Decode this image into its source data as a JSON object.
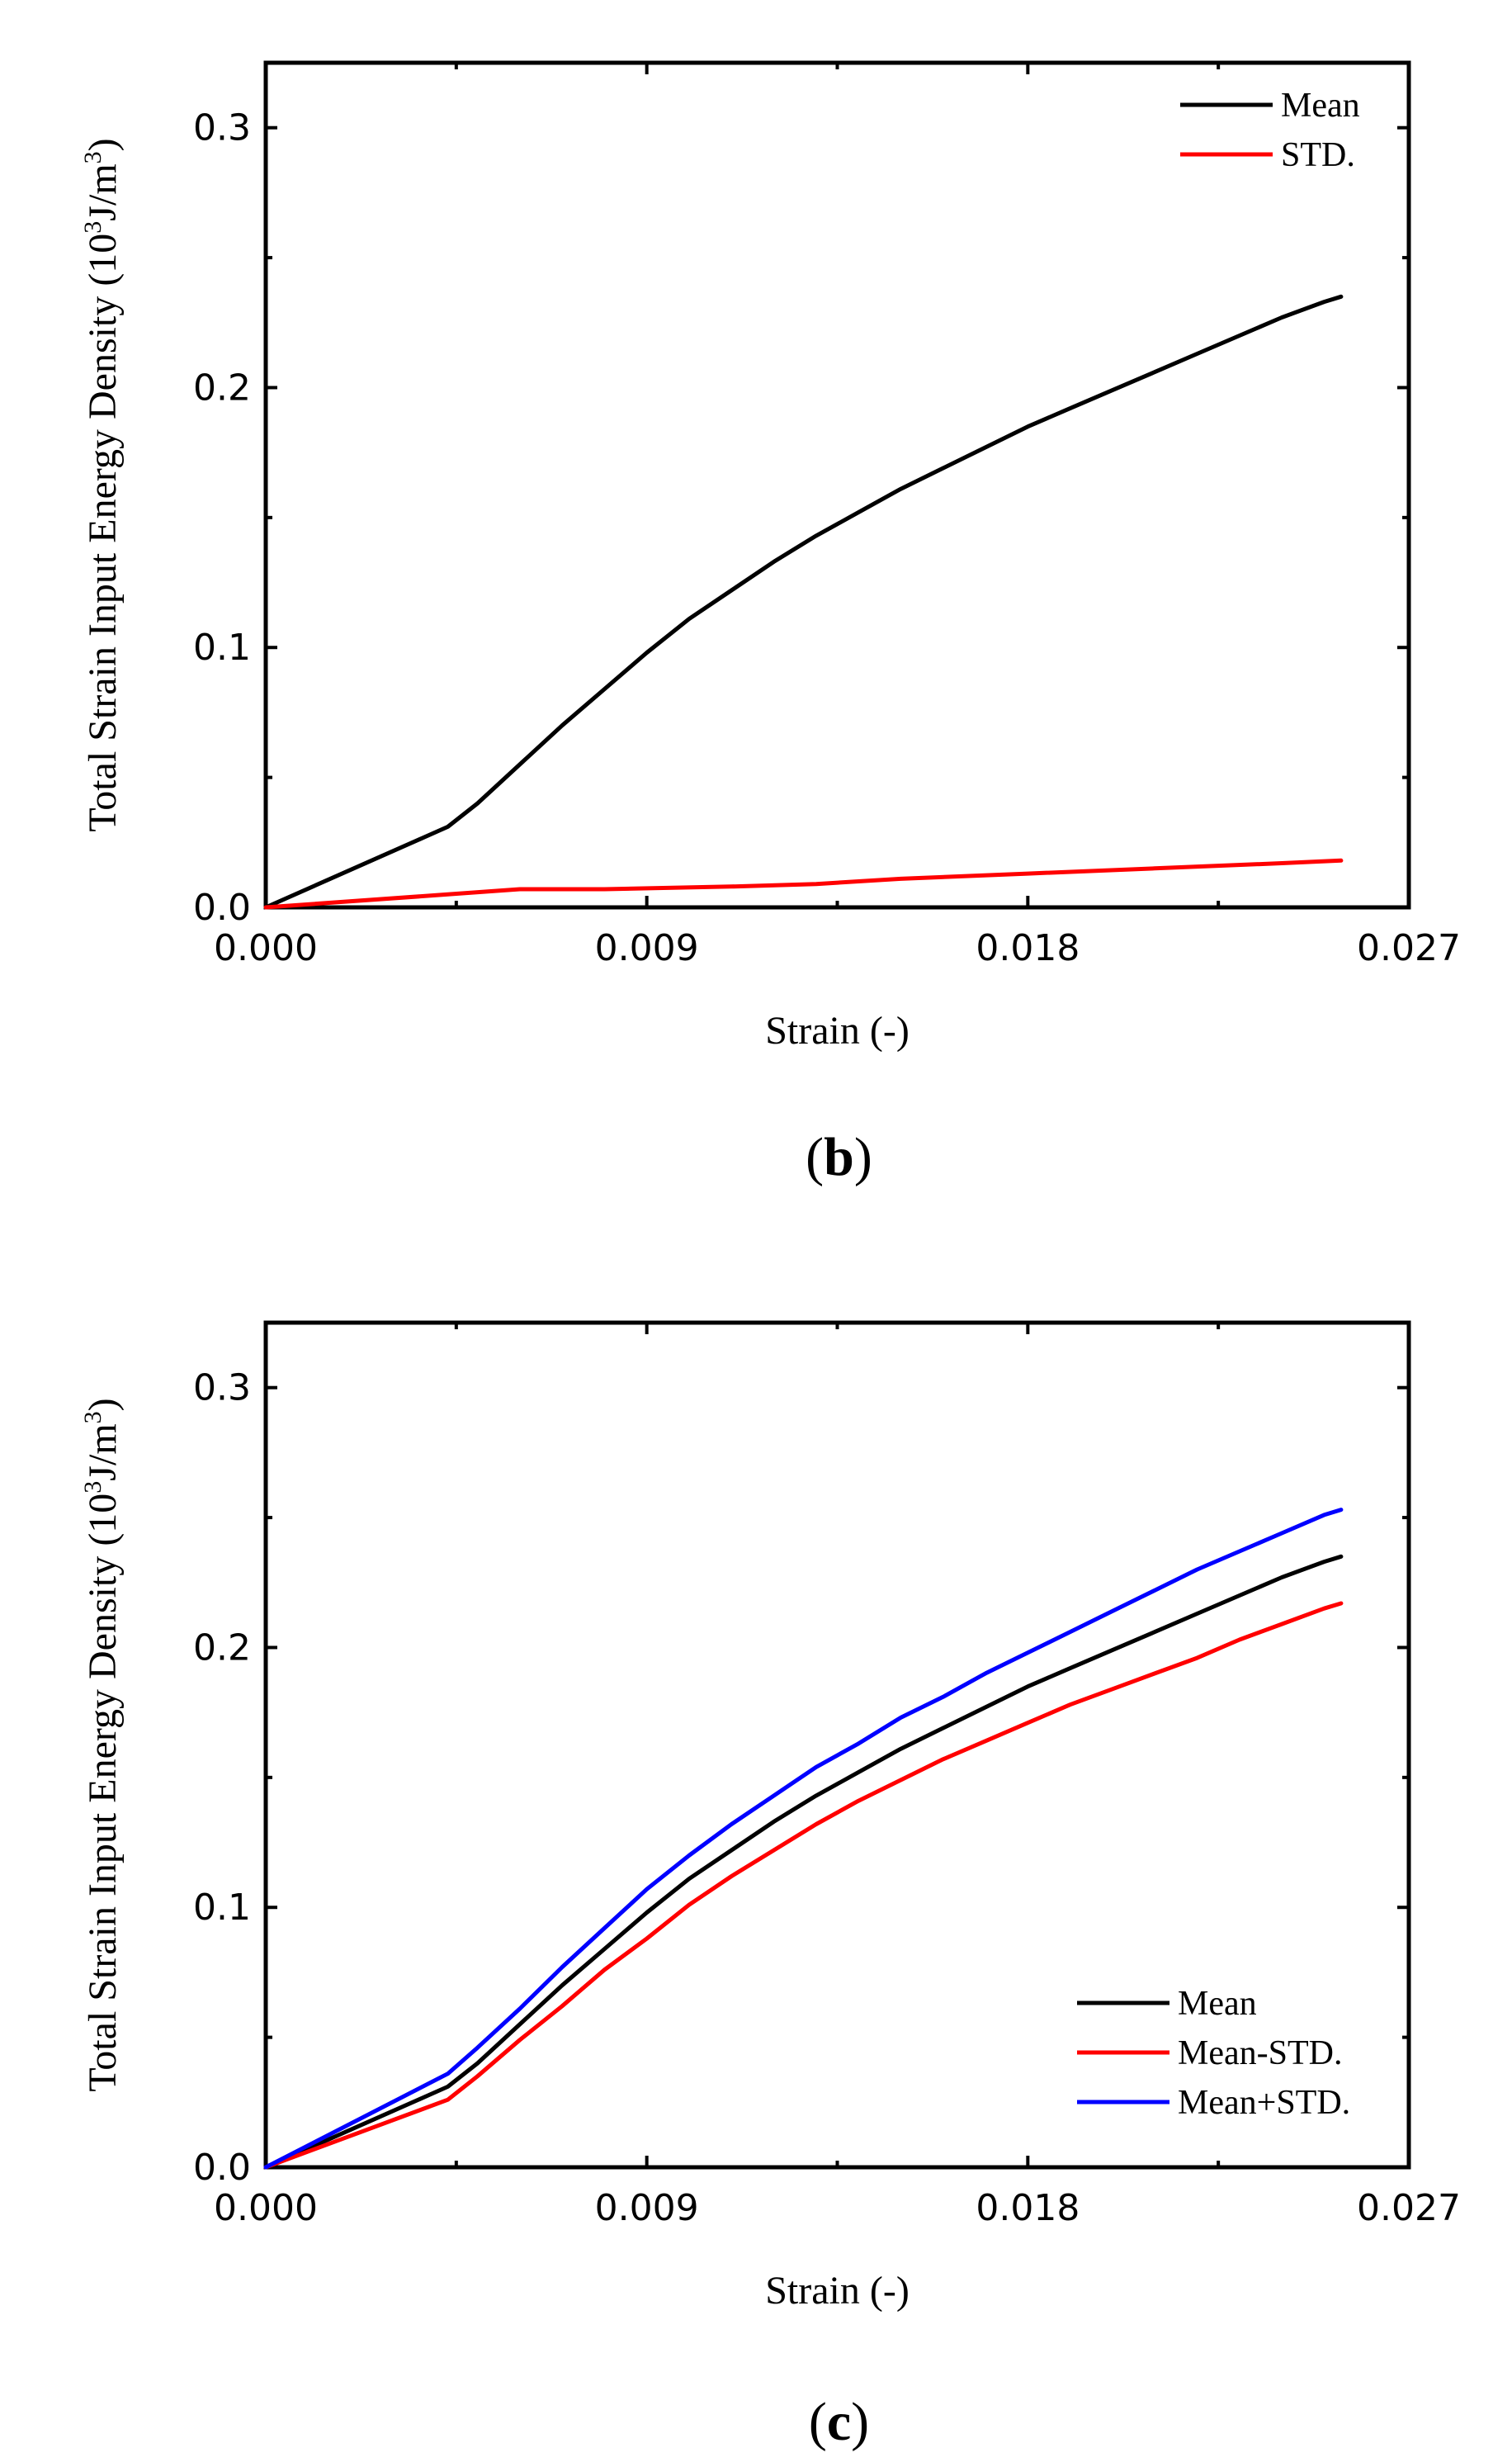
{
  "chart_data": [
    {
      "id": "b",
      "type": "line",
      "caption": {
        "open": "(",
        "letter": "b",
        "close": ")"
      },
      "xlabel": "Strain (-)",
      "ylabel": {
        "main": "Total Strain Input Energy Density (10",
        "sup1": "3",
        "mid": "J/m",
        "sup2": "3",
        "end": ")"
      },
      "xlim": [
        0,
        0.027
      ],
      "ylim": [
        0,
        0.325
      ],
      "xticks": [
        0,
        0.009,
        0.018,
        0.027
      ],
      "xtick_labels": [
        "0.000",
        "0.009",
        "0.018",
        "0.027"
      ],
      "yticks": [
        0,
        0.1,
        0.2,
        0.3
      ],
      "ytick_labels": [
        "0.0",
        "0.1",
        "0.2",
        "0.3"
      ],
      "legend_position": "top-right",
      "series": [
        {
          "name": "Mean",
          "color": "#000000",
          "x": [
            0,
            0.0043,
            0.005,
            0.006,
            0.007,
            0.008,
            0.009,
            0.01,
            0.011,
            0.012,
            0.013,
            0.014,
            0.015,
            0.016,
            0.017,
            0.018,
            0.019,
            0.02,
            0.021,
            0.022,
            0.023,
            0.024,
            0.025,
            0.0254
          ],
          "y": [
            0,
            0.031,
            0.04,
            0.055,
            0.07,
            0.084,
            0.098,
            0.111,
            0.122,
            0.133,
            0.143,
            0.152,
            0.161,
            0.169,
            0.177,
            0.185,
            0.192,
            0.199,
            0.206,
            0.213,
            0.22,
            0.227,
            0.233,
            0.235
          ]
        },
        {
          "name": "STD.",
          "color": "#ff0000",
          "x": [
            0,
            0.0043,
            0.006,
            0.008,
            0.011,
            0.013,
            0.015,
            0.018,
            0.021,
            0.024,
            0.0254
          ],
          "y": [
            0,
            0.005,
            0.007,
            0.007,
            0.008,
            0.009,
            0.011,
            0.013,
            0.015,
            0.017,
            0.018
          ]
        }
      ]
    },
    {
      "id": "c",
      "type": "line",
      "caption": {
        "open": "(",
        "letter": "c",
        "close": ")"
      },
      "xlabel": "Strain (-)",
      "ylabel": {
        "main": "Total Strain Input Energy Density (10",
        "sup1": "3",
        "mid": "J/m",
        "sup2": "3",
        "end": ")"
      },
      "xlim": [
        0,
        0.027
      ],
      "ylim": [
        0,
        0.325
      ],
      "xticks": [
        0,
        0.009,
        0.018,
        0.027
      ],
      "xtick_labels": [
        "0.000",
        "0.009",
        "0.018",
        "0.027"
      ],
      "yticks": [
        0,
        0.1,
        0.2,
        0.3
      ],
      "ytick_labels": [
        "0.0",
        "0.1",
        "0.2",
        "0.3"
      ],
      "legend_position": "bottom-right",
      "series": [
        {
          "name": "Mean",
          "color": "#000000",
          "x": [
            0,
            0.0043,
            0.005,
            0.006,
            0.007,
            0.008,
            0.009,
            0.01,
            0.011,
            0.012,
            0.013,
            0.014,
            0.015,
            0.016,
            0.017,
            0.018,
            0.019,
            0.02,
            0.021,
            0.022,
            0.023,
            0.024,
            0.025,
            0.0254
          ],
          "y": [
            0,
            0.031,
            0.04,
            0.055,
            0.07,
            0.084,
            0.098,
            0.111,
            0.122,
            0.133,
            0.143,
            0.152,
            0.161,
            0.169,
            0.177,
            0.185,
            0.192,
            0.199,
            0.206,
            0.213,
            0.22,
            0.227,
            0.233,
            0.235
          ]
        },
        {
          "name": "Mean-STD.",
          "color": "#ff0000",
          "x": [
            0,
            0.0043,
            0.005,
            0.006,
            0.007,
            0.008,
            0.009,
            0.01,
            0.011,
            0.012,
            0.013,
            0.014,
            0.015,
            0.016,
            0.017,
            0.018,
            0.019,
            0.02,
            0.021,
            0.022,
            0.023,
            0.024,
            0.025,
            0.0254
          ],
          "y": [
            0,
            0.026,
            0.035,
            0.049,
            0.062,
            0.076,
            0.088,
            0.101,
            0.112,
            0.122,
            0.132,
            0.141,
            0.149,
            0.157,
            0.164,
            0.171,
            0.178,
            0.184,
            0.19,
            0.196,
            0.203,
            0.209,
            0.215,
            0.217
          ]
        },
        {
          "name": "Mean+STD.",
          "color": "#0000ff",
          "x": [
            0,
            0.0043,
            0.005,
            0.006,
            0.007,
            0.008,
            0.009,
            0.01,
            0.011,
            0.012,
            0.013,
            0.014,
            0.015,
            0.016,
            0.017,
            0.018,
            0.019,
            0.02,
            0.021,
            0.022,
            0.023,
            0.024,
            0.025,
            0.0254
          ],
          "y": [
            0,
            0.036,
            0.046,
            0.061,
            0.077,
            0.092,
            0.107,
            0.12,
            0.132,
            0.143,
            0.154,
            0.163,
            0.173,
            0.181,
            0.19,
            0.198,
            0.206,
            0.214,
            0.222,
            0.23,
            0.237,
            0.244,
            0.251,
            0.253
          ]
        }
      ]
    }
  ]
}
